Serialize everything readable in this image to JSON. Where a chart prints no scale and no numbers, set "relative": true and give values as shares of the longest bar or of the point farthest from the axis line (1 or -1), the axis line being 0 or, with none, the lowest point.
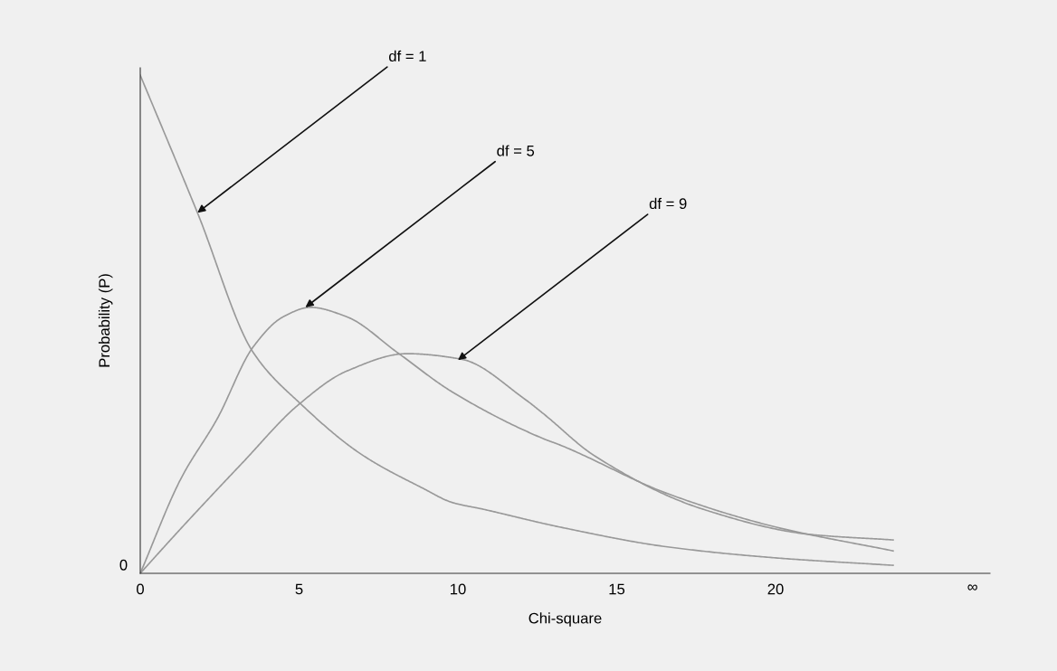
{
  "chart_data": {
    "type": "line",
    "relative": true,
    "xlabel": "Chi-square",
    "ylabel": "Probability (P)",
    "xlim": [
      0,
      26.75
    ],
    "xticks": [
      0,
      5,
      10,
      15,
      20,
      {
        "value": 26.2,
        "label": "∞"
      }
    ],
    "grid": false,
    "legend": false,
    "marker": "none",
    "line_style": "solid",
    "series": [
      {
        "color": "#999999",
        "x": [
          0,
          1.8,
          3.56,
          5.07,
          6.98,
          8.89,
          9.83,
          10.77,
          13.2,
          16.6,
          20,
          23.7
        ],
        "values": [
          1,
          0.724,
          0.443,
          0.339,
          0.238,
          0.171,
          0.142,
          0.129,
          0.093,
          0.053,
          0.031,
          0.016
        ]
      },
      {
        "color": "#999999",
        "x": [
          0,
          1.28,
          2.42,
          3.56,
          4.5,
          5.36,
          6.5,
          8.1,
          9.8,
          12.7,
          13.2,
          16.6,
          20,
          23.7
        ],
        "values": [
          0,
          0.19,
          0.31,
          0.455,
          0.515,
          0.534,
          0.515,
          0.443,
          0.365,
          0.27,
          0.258,
          0.16,
          0.093,
          0.045
        ]
      },
      {
        "color": "#999999",
        "x": [
          0,
          1.28,
          3.19,
          4.99,
          6.5,
          8.4,
          10.1,
          12.1,
          12.7,
          14.3,
          17.7,
          21.1,
          23.7
        ],
        "values": [
          0,
          0.09,
          0.22,
          0.339,
          0.406,
          0.441,
          0.43,
          0.35,
          0.32,
          0.236,
          0.129,
          0.078,
          0.067
        ]
      }
    ],
    "annotations": [
      {
        "text": "df = 1",
        "x": 1.8,
        "y": 0.724
      },
      {
        "text": "df = 5",
        "x": 5.2,
        "y": 0.534
      },
      {
        "text": "df = 9",
        "x": 10.0,
        "y": 0.428
      },
      "0"
    ]
  }
}
